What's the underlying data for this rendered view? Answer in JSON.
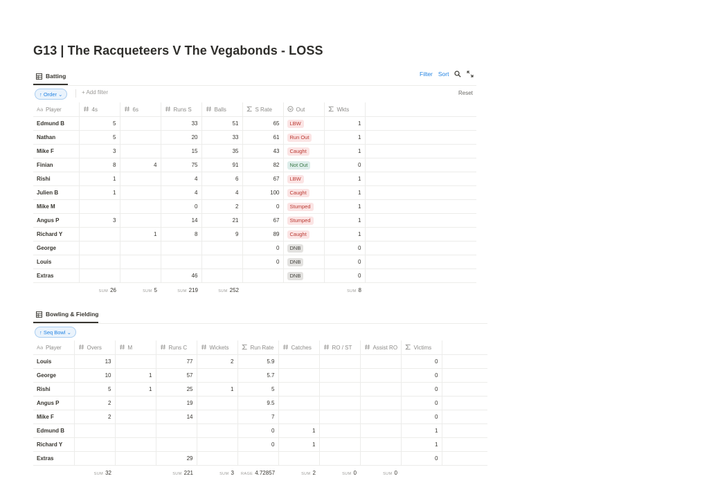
{
  "page": {
    "title": "G13 | The Racqueteers V The Vegabonds - LOSS"
  },
  "batting": {
    "view_name": "Batting",
    "actions": {
      "filter": "Filter",
      "sort": "Sort"
    },
    "sort_pill": "↑ Order ⌄",
    "add_filter": "+ Add filter",
    "reset": "Reset",
    "columns": [
      {
        "label": "Player",
        "icon": "text-property-icon"
      },
      {
        "label": "4s",
        "icon": "number-property-icon"
      },
      {
        "label": "6s",
        "icon": "number-property-icon"
      },
      {
        "label": "Runs S",
        "icon": "number-property-icon"
      },
      {
        "label": "Balls",
        "icon": "number-property-icon"
      },
      {
        "label": "S Rate",
        "icon": "formula-property-icon"
      },
      {
        "label": "Out",
        "icon": "select-property-icon"
      },
      {
        "label": "Wkts",
        "icon": "formula-property-icon"
      }
    ],
    "rows": [
      {
        "player": "Edmund B",
        "fours": "5",
        "sixes": "",
        "runs": "33",
        "balls": "51",
        "srate": "65",
        "out": "LBW",
        "out_color": "red",
        "wkts": "1"
      },
      {
        "player": "Nathan",
        "fours": "5",
        "sixes": "",
        "runs": "20",
        "balls": "33",
        "srate": "61",
        "out": "Run Out",
        "out_color": "red",
        "wkts": "1"
      },
      {
        "player": "Mike F",
        "fours": "3",
        "sixes": "",
        "runs": "15",
        "balls": "35",
        "srate": "43",
        "out": "Caught",
        "out_color": "red",
        "wkts": "1"
      },
      {
        "player": "Finian",
        "fours": "8",
        "sixes": "4",
        "runs": "75",
        "balls": "91",
        "srate": "82",
        "out": "Not Out",
        "out_color": "green",
        "wkts": "0"
      },
      {
        "player": "Rishi",
        "fours": "1",
        "sixes": "",
        "runs": "4",
        "balls": "6",
        "srate": "67",
        "out": "LBW",
        "out_color": "red",
        "wkts": "1"
      },
      {
        "player": "Julien B",
        "fours": "1",
        "sixes": "",
        "runs": "4",
        "balls": "4",
        "srate": "100",
        "out": "Caught",
        "out_color": "red",
        "wkts": "1"
      },
      {
        "player": "Mike M",
        "fours": "",
        "sixes": "",
        "runs": "0",
        "balls": "2",
        "srate": "0",
        "out": "Stumped",
        "out_color": "red",
        "wkts": "1"
      },
      {
        "player": "Angus P",
        "fours": "3",
        "sixes": "",
        "runs": "14",
        "balls": "21",
        "srate": "67",
        "out": "Stumped",
        "out_color": "red",
        "wkts": "1"
      },
      {
        "player": "Richard Y",
        "fours": "",
        "sixes": "1",
        "runs": "8",
        "balls": "9",
        "srate": "89",
        "out": "Caught",
        "out_color": "red",
        "wkts": "1"
      },
      {
        "player": "George",
        "fours": "",
        "sixes": "",
        "runs": "",
        "balls": "",
        "srate": "0",
        "out": "DNB",
        "out_color": "gray",
        "wkts": "0"
      },
      {
        "player": "Louis",
        "fours": "",
        "sixes": "",
        "runs": "",
        "balls": "",
        "srate": "0",
        "out": "DNB",
        "out_color": "gray",
        "wkts": "0"
      },
      {
        "player": "Extras",
        "fours": "",
        "sixes": "",
        "runs": "46",
        "balls": "",
        "srate": "",
        "out": "DNB",
        "out_color": "gray",
        "wkts": "0"
      }
    ],
    "sums": [
      {
        "label": "",
        "value": ""
      },
      {
        "label": "SUM",
        "value": "26"
      },
      {
        "label": "SUM",
        "value": "5"
      },
      {
        "label": "SUM",
        "value": "219"
      },
      {
        "label": "SUM",
        "value": "252"
      },
      {
        "label": "",
        "value": ""
      },
      {
        "label": "",
        "value": ""
      },
      {
        "label": "SUM",
        "value": "8"
      }
    ]
  },
  "bowling": {
    "view_name": "Bowling & Fielding",
    "sort_pill": "↑ Seq Bowl ⌄",
    "columns": [
      {
        "label": "Player",
        "icon": "text-property-icon"
      },
      {
        "label": "Overs",
        "icon": "number-property-icon"
      },
      {
        "label": "M",
        "icon": "number-property-icon"
      },
      {
        "label": "Runs C",
        "icon": "number-property-icon"
      },
      {
        "label": "Wickets",
        "icon": "number-property-icon"
      },
      {
        "label": "Run Rate",
        "icon": "formula-property-icon"
      },
      {
        "label": "Catches",
        "icon": "number-property-icon"
      },
      {
        "label": "RO / ST",
        "icon": "number-property-icon"
      },
      {
        "label": "Assist RO",
        "icon": "number-property-icon"
      },
      {
        "label": "Victims",
        "icon": "formula-property-icon"
      }
    ],
    "rows": [
      {
        "player": "Louis",
        "overs": "13",
        "m": "",
        "runs": "77",
        "wickets": "2",
        "rrate": "5.9",
        "catches": "",
        "rost": "",
        "assist": "",
        "victims": "0"
      },
      {
        "player": "George",
        "overs": "10",
        "m": "1",
        "runs": "57",
        "wickets": "",
        "rrate": "5.7",
        "catches": "",
        "rost": "",
        "assist": "",
        "victims": "0"
      },
      {
        "player": "Rishi",
        "overs": "5",
        "m": "1",
        "runs": "25",
        "wickets": "1",
        "rrate": "5",
        "catches": "",
        "rost": "",
        "assist": "",
        "victims": "0"
      },
      {
        "player": "Angus P",
        "overs": "2",
        "m": "",
        "runs": "19",
        "wickets": "",
        "rrate": "9.5",
        "catches": "",
        "rost": "",
        "assist": "",
        "victims": "0"
      },
      {
        "player": "Mike F",
        "overs": "2",
        "m": "",
        "runs": "14",
        "wickets": "",
        "rrate": "7",
        "catches": "",
        "rost": "",
        "assist": "",
        "victims": "0"
      },
      {
        "player": "Edmund B",
        "overs": "",
        "m": "",
        "runs": "",
        "wickets": "",
        "rrate": "0",
        "catches": "1",
        "rost": "",
        "assist": "",
        "victims": "1"
      },
      {
        "player": "Richard Y",
        "overs": "",
        "m": "",
        "runs": "",
        "wickets": "",
        "rrate": "0",
        "catches": "1",
        "rost": "",
        "assist": "",
        "victims": "1"
      },
      {
        "player": "Extras",
        "overs": "",
        "m": "",
        "runs": "29",
        "wickets": "",
        "rrate": "",
        "catches": "",
        "rost": "",
        "assist": "",
        "victims": "0"
      }
    ],
    "sums": [
      {
        "label": "",
        "value": ""
      },
      {
        "label": "SUM",
        "value": "32"
      },
      {
        "label": "",
        "value": ""
      },
      {
        "label": "SUM",
        "value": "221"
      },
      {
        "label": "SUM",
        "value": "3"
      },
      {
        "label": "RAGE",
        "value": "4.72857"
      },
      {
        "label": "SUM",
        "value": "2"
      },
      {
        "label": "SUM",
        "value": "0"
      },
      {
        "label": "SUM",
        "value": "0"
      },
      {
        "label": "",
        "value": ""
      }
    ]
  },
  "colors": {
    "accent": "#2383e2",
    "badge_red_bg": "#fbe4e4",
    "badge_red_text": "#bb3a33",
    "badge_green_bg": "#ddedea",
    "badge_green_text": "#3c7a47",
    "badge_gray_bg": "#e3e2e0",
    "badge_gray_text": "#45443f"
  }
}
